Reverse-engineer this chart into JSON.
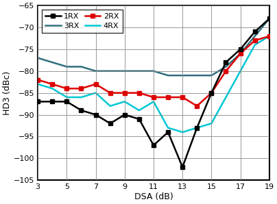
{
  "x": [
    3,
    4,
    5,
    6,
    7,
    8,
    9,
    10,
    11,
    12,
    13,
    14,
    15,
    16,
    17,
    18,
    19
  ],
  "1RX": [
    -87,
    -87,
    -87,
    -89,
    -90,
    -92,
    -90,
    -91,
    -97,
    -94,
    -102,
    -93,
    -85,
    -78,
    -75,
    -71,
    -68
  ],
  "2RX": [
    -82,
    -83,
    -84,
    -84,
    -83,
    -85,
    -85,
    -85,
    -86,
    -86,
    -86,
    -88,
    -85,
    -80,
    -76,
    -73,
    -72
  ],
  "3RX": [
    -77,
    -78,
    -79,
    -79,
    -80,
    -80,
    -80,
    -80,
    -80,
    -81,
    -81,
    -81,
    -81,
    -79,
    -76,
    -72,
    -68
  ],
  "4RX": [
    -83,
    -84,
    -86,
    -86,
    -85,
    -88,
    -87,
    -89,
    -87,
    -93,
    -94,
    -93,
    -92,
    -86,
    -80,
    -74,
    -72
  ],
  "colors": {
    "1RX": "#000000",
    "2RX": "#dd0000",
    "3RX": "#2e6e7e",
    "4RX": "#00c8d4"
  },
  "xlabel": "DSA (dB)",
  "ylabel": "HD3 (dBc)",
  "xlim": [
    3,
    19
  ],
  "ylim": [
    -105,
    -65
  ],
  "xticks": [
    3,
    5,
    7,
    9,
    11,
    13,
    15,
    17,
    19
  ],
  "yticks": [
    -105,
    -100,
    -95,
    -90,
    -85,
    -80,
    -75,
    -70,
    -65
  ],
  "background_color": "#ffffff",
  "grid_color": "#888888"
}
